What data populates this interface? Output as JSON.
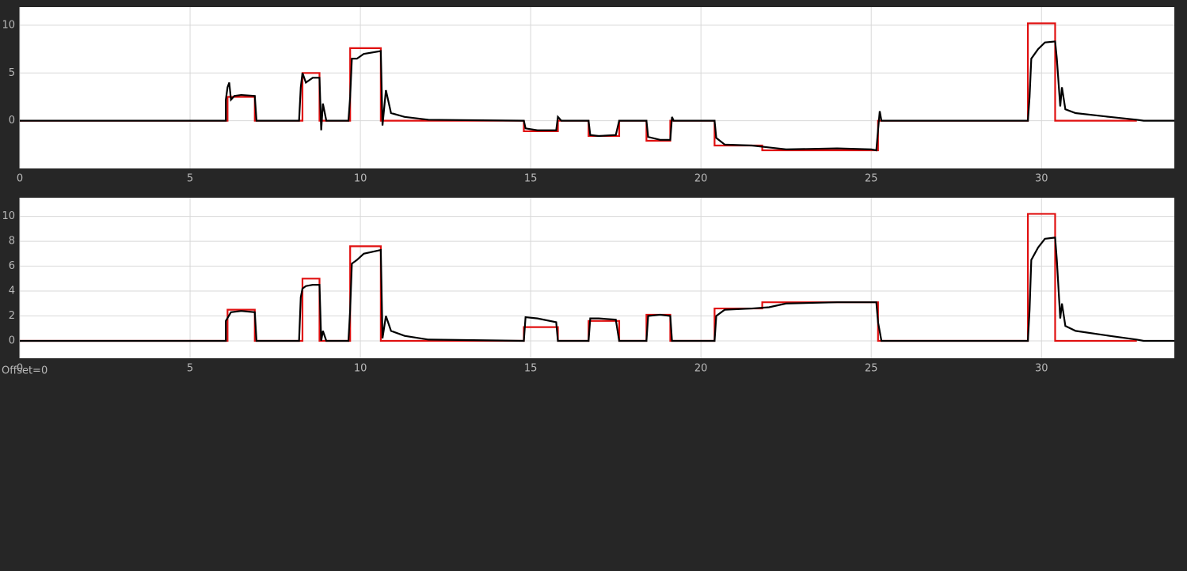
{
  "chart_data": [
    {
      "type": "line",
      "xlim": [
        0,
        33.9
      ],
      "ylim": [
        -5,
        11.9
      ],
      "xticks": [
        0,
        5,
        10,
        15,
        20,
        25,
        30
      ],
      "yticks": [
        0,
        5,
        10
      ],
      "grid": true,
      "series": [
        {
          "color": "#e01010",
          "x": [
            0,
            6.1,
            6.1,
            6.9,
            6.9,
            8.3,
            8.3,
            8.8,
            8.8,
            9.7,
            9.7,
            10.6,
            10.6,
            12,
            14.8,
            14.8,
            15.8,
            15.8,
            16.7,
            16.7,
            17.6,
            17.6,
            18.4,
            18.4,
            19.1,
            19.1,
            20.4,
            20.4,
            21.8,
            21.8,
            25.2,
            25.2,
            29.6,
            29.6,
            30.4,
            30.4,
            32.8
          ],
          "values": [
            0,
            0,
            2.5,
            2.5,
            0,
            0,
            5,
            5,
            0,
            0,
            7.6,
            7.6,
            0,
            0,
            0,
            -1.1,
            -1.1,
            0,
            0,
            -1.6,
            -1.6,
            0,
            0,
            -2.1,
            -2.1,
            0,
            0,
            -2.6,
            -2.6,
            -3.1,
            -3.1,
            0,
            0,
            10.2,
            10.2,
            0,
            0
          ]
        },
        {
          "color": "#000000",
          "x": [
            0,
            6.05,
            6.05,
            6.1,
            6.15,
            6.2,
            6.3,
            6.5,
            6.9,
            6.95,
            8.2,
            8.25,
            8.3,
            8.4,
            8.6,
            8.8,
            8.85,
            8.9,
            9.0,
            9.65,
            9.7,
            9.75,
            9.9,
            10.1,
            10.6,
            10.65,
            10.75,
            10.9,
            11.3,
            12,
            14.8,
            14.85,
            15.2,
            15.75,
            15.8,
            15.9,
            16.7,
            16.75,
            17,
            17.5,
            17.6,
            18.4,
            18.45,
            18.8,
            19.1,
            19.15,
            19.2,
            20.4,
            20.45,
            20.7,
            21.5,
            22,
            22.5,
            24,
            25,
            25.15,
            25.2,
            25.25,
            25.3,
            29.6,
            29.65,
            29.7,
            29.9,
            30.1,
            30.4,
            30.45,
            30.55,
            30.6,
            30.7,
            31,
            32,
            32.8,
            33,
            33.9
          ],
          "values": [
            0,
            0,
            2.2,
            3.5,
            4,
            2.2,
            2.6,
            2.7,
            2.6,
            0,
            0,
            3.5,
            5,
            4,
            4.5,
            4.5,
            -1,
            1.8,
            0,
            0,
            2.5,
            6.5,
            6.5,
            7,
            7.3,
            -0.5,
            3.2,
            0.8,
            0.4,
            0.1,
            0,
            -0.8,
            -1,
            -1,
            0.4,
            0,
            0,
            -1.5,
            -1.6,
            -1.5,
            0,
            0,
            -1.7,
            -2,
            -2,
            0.4,
            0,
            0,
            -1.8,
            -2.5,
            -2.6,
            -2.8,
            -3,
            -2.9,
            -3,
            -3.1,
            -1,
            1,
            0,
            0,
            2.5,
            6.5,
            7.5,
            8.2,
            8.3,
            6.5,
            1.5,
            3.5,
            1.2,
            0.8,
            0.4,
            0.1,
            0,
            0
          ]
        }
      ]
    },
    {
      "type": "line",
      "xlim": [
        0,
        33.9
      ],
      "ylim": [
        -1.4,
        11.5
      ],
      "xticks": [
        0,
        5,
        10,
        15,
        20,
        25,
        30
      ],
      "yticks": [
        0,
        2,
        4,
        6,
        8,
        10
      ],
      "grid": true,
      "series": [
        {
          "color": "#e01010",
          "x": [
            0,
            6.1,
            6.1,
            6.9,
            6.9,
            8.3,
            8.3,
            8.8,
            8.8,
            9.7,
            9.7,
            10.6,
            10.6,
            12,
            14.8,
            14.8,
            15.8,
            15.8,
            16.7,
            16.7,
            17.6,
            17.6,
            18.4,
            18.4,
            19.1,
            19.1,
            20.4,
            20.4,
            21.8,
            21.8,
            25.2,
            25.2,
            29.6,
            29.6,
            30.4,
            30.4,
            32.8
          ],
          "values": [
            0,
            0,
            2.5,
            2.5,
            0,
            0,
            5,
            5,
            0,
            0,
            7.6,
            7.6,
            0,
            0,
            0,
            1.1,
            1.1,
            0,
            0,
            1.6,
            1.6,
            0,
            0,
            2.1,
            2.1,
            0,
            0,
            2.6,
            2.6,
            3.1,
            3.1,
            0,
            0,
            10.2,
            10.2,
            0,
            0
          ]
        },
        {
          "color": "#000000",
          "x": [
            0,
            6.05,
            6.05,
            6.2,
            6.5,
            6.9,
            6.95,
            8.2,
            8.25,
            8.3,
            8.4,
            8.6,
            8.8,
            8.85,
            8.9,
            9.0,
            9.65,
            9.7,
            9.75,
            9.9,
            10.1,
            10.6,
            10.65,
            10.75,
            10.9,
            11.3,
            12,
            14.8,
            14.85,
            15.2,
            15.75,
            15.8,
            15.9,
            16.7,
            16.75,
            17,
            17.5,
            17.6,
            18.4,
            18.45,
            18.8,
            19.1,
            19.15,
            19.2,
            20.4,
            20.45,
            20.7,
            21.5,
            22,
            22.5,
            24,
            25,
            25.15,
            25.2,
            25.3,
            29.6,
            29.65,
            29.7,
            29.9,
            30.1,
            30.4,
            30.45,
            30.55,
            30.6,
            30.7,
            31,
            32,
            32.8,
            33,
            33.9
          ],
          "values": [
            0,
            0,
            1.6,
            2.3,
            2.4,
            2.3,
            0,
            0,
            3.5,
            4.2,
            4.4,
            4.5,
            4.5,
            0,
            0.8,
            0,
            0,
            2.5,
            6.2,
            6.5,
            7,
            7.3,
            0.2,
            2,
            0.8,
            0.4,
            0.1,
            0,
            1.9,
            1.8,
            1.5,
            0,
            0,
            0,
            1.8,
            1.8,
            1.7,
            0,
            0,
            2,
            2.1,
            2.0,
            0,
            0,
            0,
            2,
            2.5,
            2.6,
            2.7,
            3.0,
            3.1,
            3.1,
            3.1,
            1.5,
            0,
            0,
            2.5,
            6.5,
            7.5,
            8.2,
            8.3,
            6.5,
            1.8,
            3,
            1.2,
            0.8,
            0.4,
            0.1,
            0,
            0
          ]
        }
      ]
    }
  ],
  "footer": "Offset=0"
}
